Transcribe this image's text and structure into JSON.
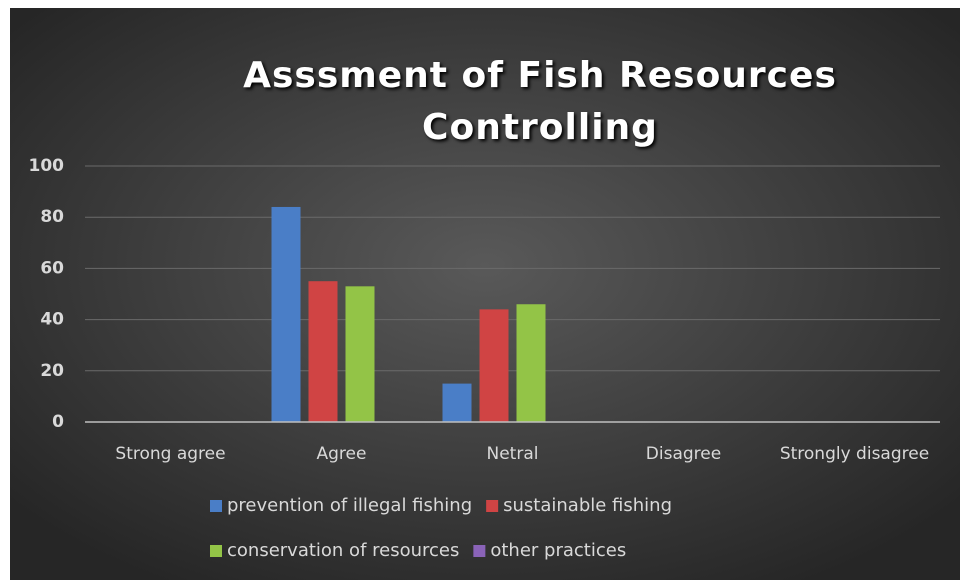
{
  "chart_data": {
    "type": "bar",
    "title": "Asssment of Fish Resources Controlling",
    "categories": [
      "Strong agree",
      "Agree",
      "Netral",
      "Disagree",
      "Strongly disagree"
    ],
    "series": [
      {
        "name": "prevention of illegal fishing",
        "color": "#4a7ec7",
        "values": [
          0,
          84,
          15,
          0,
          0
        ]
      },
      {
        "name": "sustainable fishing",
        "color": "#d04444",
        "values": [
          0,
          55,
          44,
          0,
          0
        ]
      },
      {
        "name": "conservation of resources",
        "color": "#93c447",
        "values": [
          0,
          53,
          46,
          0,
          0
        ]
      },
      {
        "name": "other practices",
        "color": "#8a63b8",
        "values": [
          0,
          0,
          0,
          0,
          0
        ]
      }
    ],
    "ylim": [
      0,
      100
    ],
    "yticks": [
      0,
      20,
      40,
      60,
      80,
      100
    ],
    "grid": true,
    "legend": "bottom"
  }
}
